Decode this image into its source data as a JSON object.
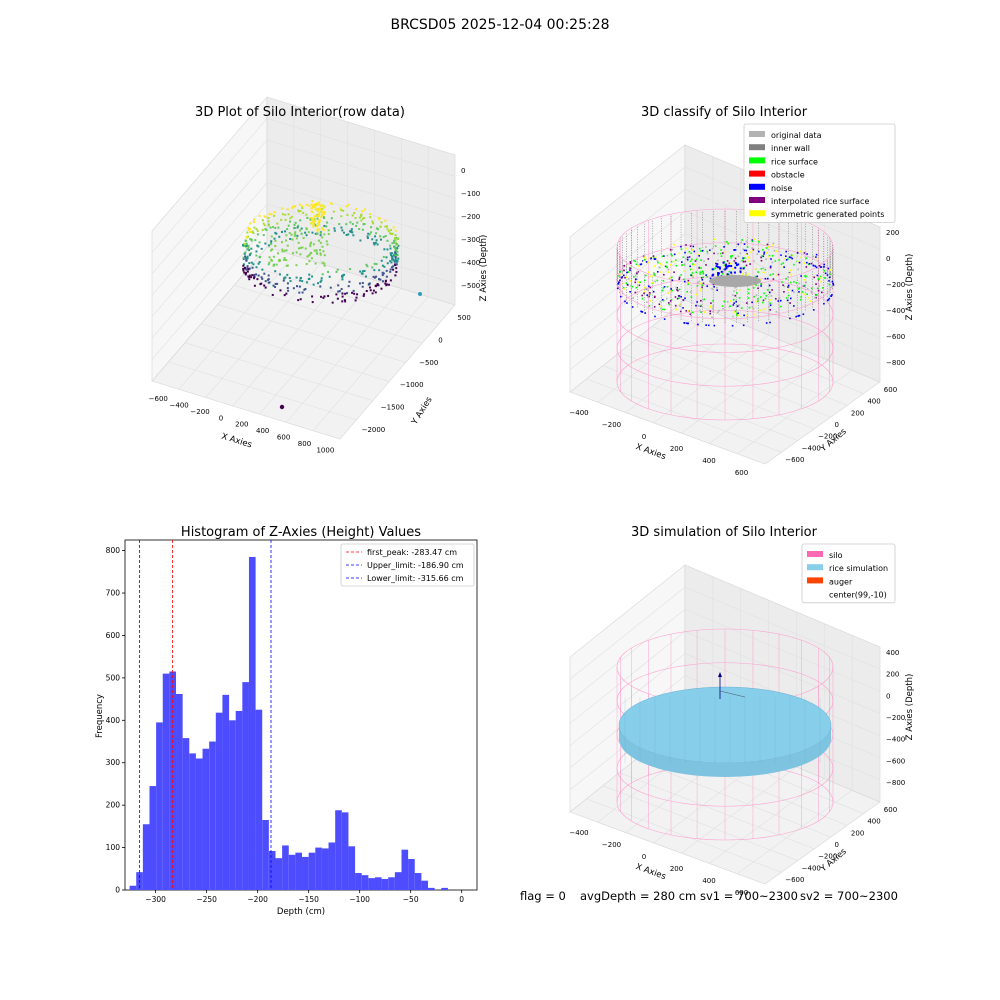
{
  "suptitle": "BRCSD05 2025-12-04 00:25:28",
  "footer": {
    "flag": "flag = 0",
    "avg_depth": "avgDepth = 280 cm",
    "sv1": "sv1 = 700~2300",
    "sv2": "sv2 = 700~2300"
  },
  "chart_data": [
    {
      "type": "scatter",
      "title": "3D Plot of Silo Interior(row data)",
      "xlabel": "X Axies",
      "ylabel": "Y Axies",
      "zlabel": "Z Axies (Depth)",
      "x_ticks": [
        -600,
        -400,
        -200,
        0,
        200,
        400,
        600,
        800,
        1000
      ],
      "y_ticks": [
        -2000,
        -1500,
        -1000,
        -500,
        0,
        500
      ],
      "z_ticks": [
        -500,
        -400,
        -300,
        -200,
        -100,
        0
      ],
      "colormap": "viridis"
    },
    {
      "type": "scatter",
      "title": "3D classify of Silo Interior",
      "xlabel": "X Axies",
      "ylabel": "Y Axies",
      "zlabel": "Z Axies (Depth)",
      "x_ticks": [
        -400,
        -200,
        0,
        200,
        400,
        600
      ],
      "y_ticks": [
        -600,
        -400,
        -200,
        0,
        200,
        400,
        600
      ],
      "z_ticks": [
        -800,
        -600,
        -400,
        -200,
        0,
        200
      ],
      "legend_position": "top-right",
      "legend": [
        {
          "label": "original data",
          "color": "#b3b3b3"
        },
        {
          "label": "inner wall",
          "color": "#808080"
        },
        {
          "label": "rice surface",
          "color": "#00ff00"
        },
        {
          "label": "obstacle",
          "color": "#ff0000"
        },
        {
          "label": "noise",
          "color": "#0000ff"
        },
        {
          "label": "interpolated rice surface",
          "color": "#800080"
        },
        {
          "label": "symmetric generated points",
          "color": "#ffff00"
        }
      ]
    },
    {
      "type": "bar",
      "title": "Histogram of Z-Axies (Height) Values",
      "xlabel": "Depth (cm)",
      "ylabel": "Frequency",
      "color": "#4d4dff",
      "xlim": [
        -330,
        15
      ],
      "ylim": [
        0,
        825
      ],
      "x_ticks": [
        -300,
        -250,
        -200,
        -150,
        -100,
        -50,
        0
      ],
      "y_ticks": [
        0,
        100,
        200,
        300,
        400,
        500,
        600,
        700,
        800
      ],
      "bin_start": -325.5,
      "bin_width": 6.5,
      "values": [
        10,
        42,
        155,
        245,
        395,
        510,
        515,
        462,
        358,
        322,
        310,
        333,
        350,
        418,
        460,
        400,
        422,
        490,
        785,
        425,
        165,
        92,
        75,
        105,
        83,
        88,
        78,
        88,
        100,
        98,
        112,
        188,
        183,
        103,
        40,
        35,
        28,
        30,
        26,
        30,
        42,
        95,
        73,
        40,
        22,
        5,
        0,
        5
      ],
      "vlines": [
        {
          "label": "first_peak: -283.47 cm",
          "x": -283.47,
          "color": "#ff0000"
        },
        {
          "label": "Upper_limit: -186.90 cm",
          "x": -186.9,
          "color": "#0000ff"
        },
        {
          "label": "Lower_limit: -315.66 cm",
          "x": -315.66,
          "color": "#0000ff"
        }
      ],
      "legend_position": "top-right"
    },
    {
      "type": "scatter",
      "title": "3D simulation of Silo Interior",
      "xlabel": "X Axies",
      "ylabel": "Y Axies",
      "zlabel": "Z Axies (Depth)",
      "x_ticks": [
        -400,
        -200,
        0,
        200,
        400,
        600
      ],
      "y_ticks": [
        -600,
        -400,
        -200,
        0,
        200,
        400,
        600
      ],
      "z_ticks": [
        -800,
        -600,
        -400,
        -200,
        0,
        200,
        400
      ],
      "legend_position": "top-right",
      "legend": [
        {
          "label": "silo",
          "color": "#ff69b4"
        },
        {
          "label": "rice simulation",
          "color": "#87ceeb"
        },
        {
          "label": "auger",
          "color": "#ff4500"
        },
        {
          "label": "center(99,-10)",
          "color": "#ffffff"
        }
      ]
    }
  ]
}
